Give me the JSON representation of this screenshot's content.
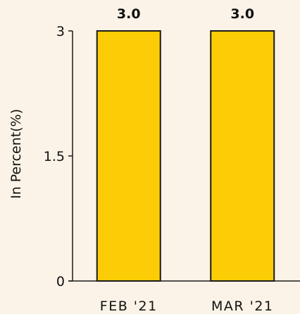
{
  "chart_data": {
    "type": "bar",
    "categories": [
      "FEB '21",
      "MAR '21"
    ],
    "values": [
      3.0,
      3.0
    ],
    "data_labels": [
      "3.0",
      "3.0"
    ],
    "title": "",
    "xlabel": "",
    "ylabel": "In Percent(%)",
    "ylim": [
      0,
      3
    ],
    "yticks": [
      {
        "value": 0,
        "label": "0"
      },
      {
        "value": 1.5,
        "label": "1.5"
      },
      {
        "value": 3,
        "label": "3"
      }
    ],
    "grid": false,
    "legend": "none",
    "colors": {
      "bar_fill": "#fccd06",
      "bar_stroke": "#1a1a1a",
      "axis": "#1a1a1a",
      "background": "#fbf3e7"
    }
  }
}
